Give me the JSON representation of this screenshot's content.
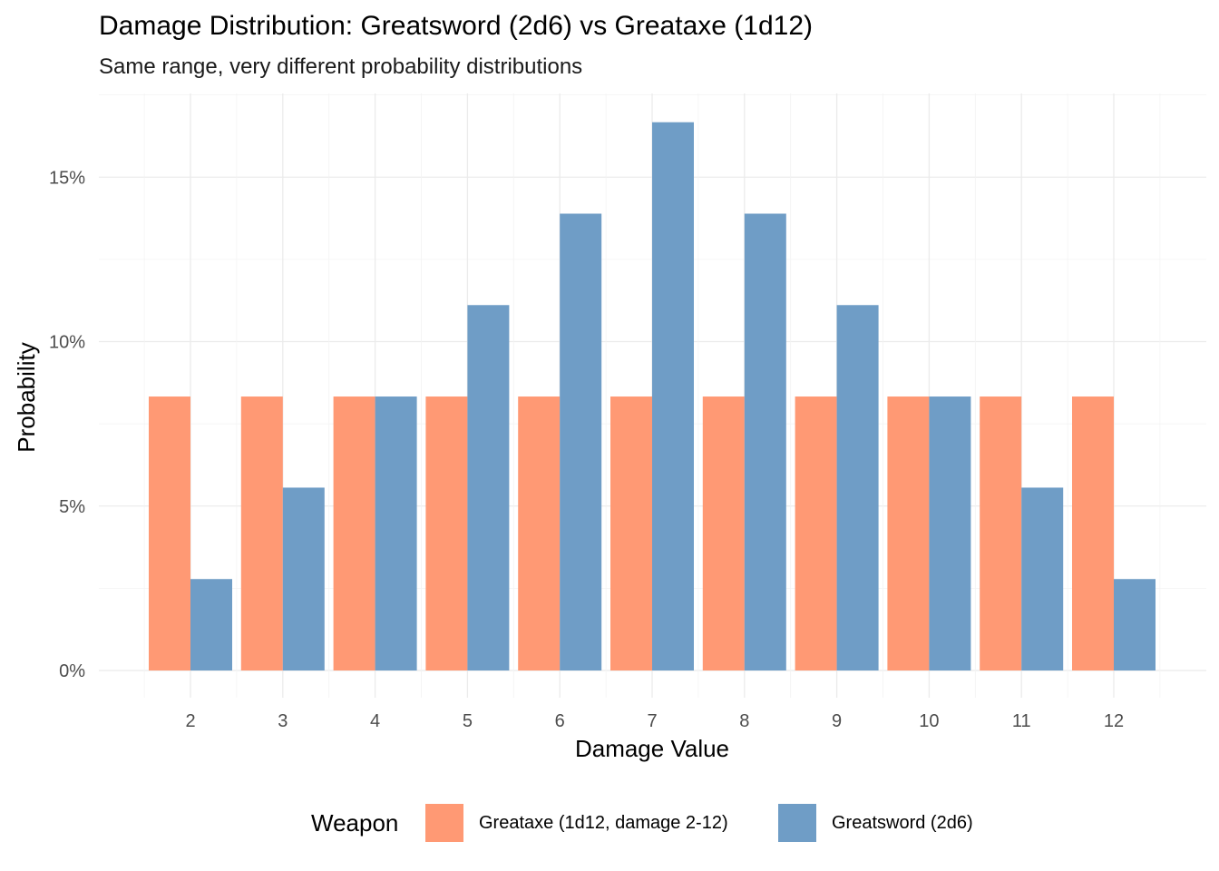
{
  "chart_data": {
    "type": "bar",
    "title": "Damage Distribution: Greatsword (2d6) vs Greataxe (1d12)",
    "subtitle": "Same range, very different probability distributions",
    "xlabel": "Damage Value",
    "ylabel": "Probability",
    "categories": [
      "2",
      "3",
      "4",
      "5",
      "6",
      "7",
      "8",
      "9",
      "10",
      "11",
      "12"
    ],
    "series": [
      {
        "name": "Greataxe (1d12, damage 2-12)",
        "color": "#FF9670",
        "values": [
          8.33,
          8.33,
          8.33,
          8.33,
          8.33,
          8.33,
          8.33,
          8.33,
          8.33,
          8.33,
          8.33
        ]
      },
      {
        "name": "Greatsword (2d6)",
        "color": "#6A9AC4",
        "values": [
          2.78,
          5.56,
          8.33,
          11.11,
          13.89,
          16.67,
          13.89,
          11.11,
          8.33,
          5.56,
          2.78
        ]
      }
    ],
    "ylim": [
      0,
      17.5
    ],
    "yticks": [
      0,
      5,
      10,
      15
    ],
    "ytick_labels": [
      "0%",
      "5%",
      "10%",
      "15%"
    ],
    "grid": true,
    "legend": {
      "title": "Weapon",
      "position": "bottom"
    }
  }
}
